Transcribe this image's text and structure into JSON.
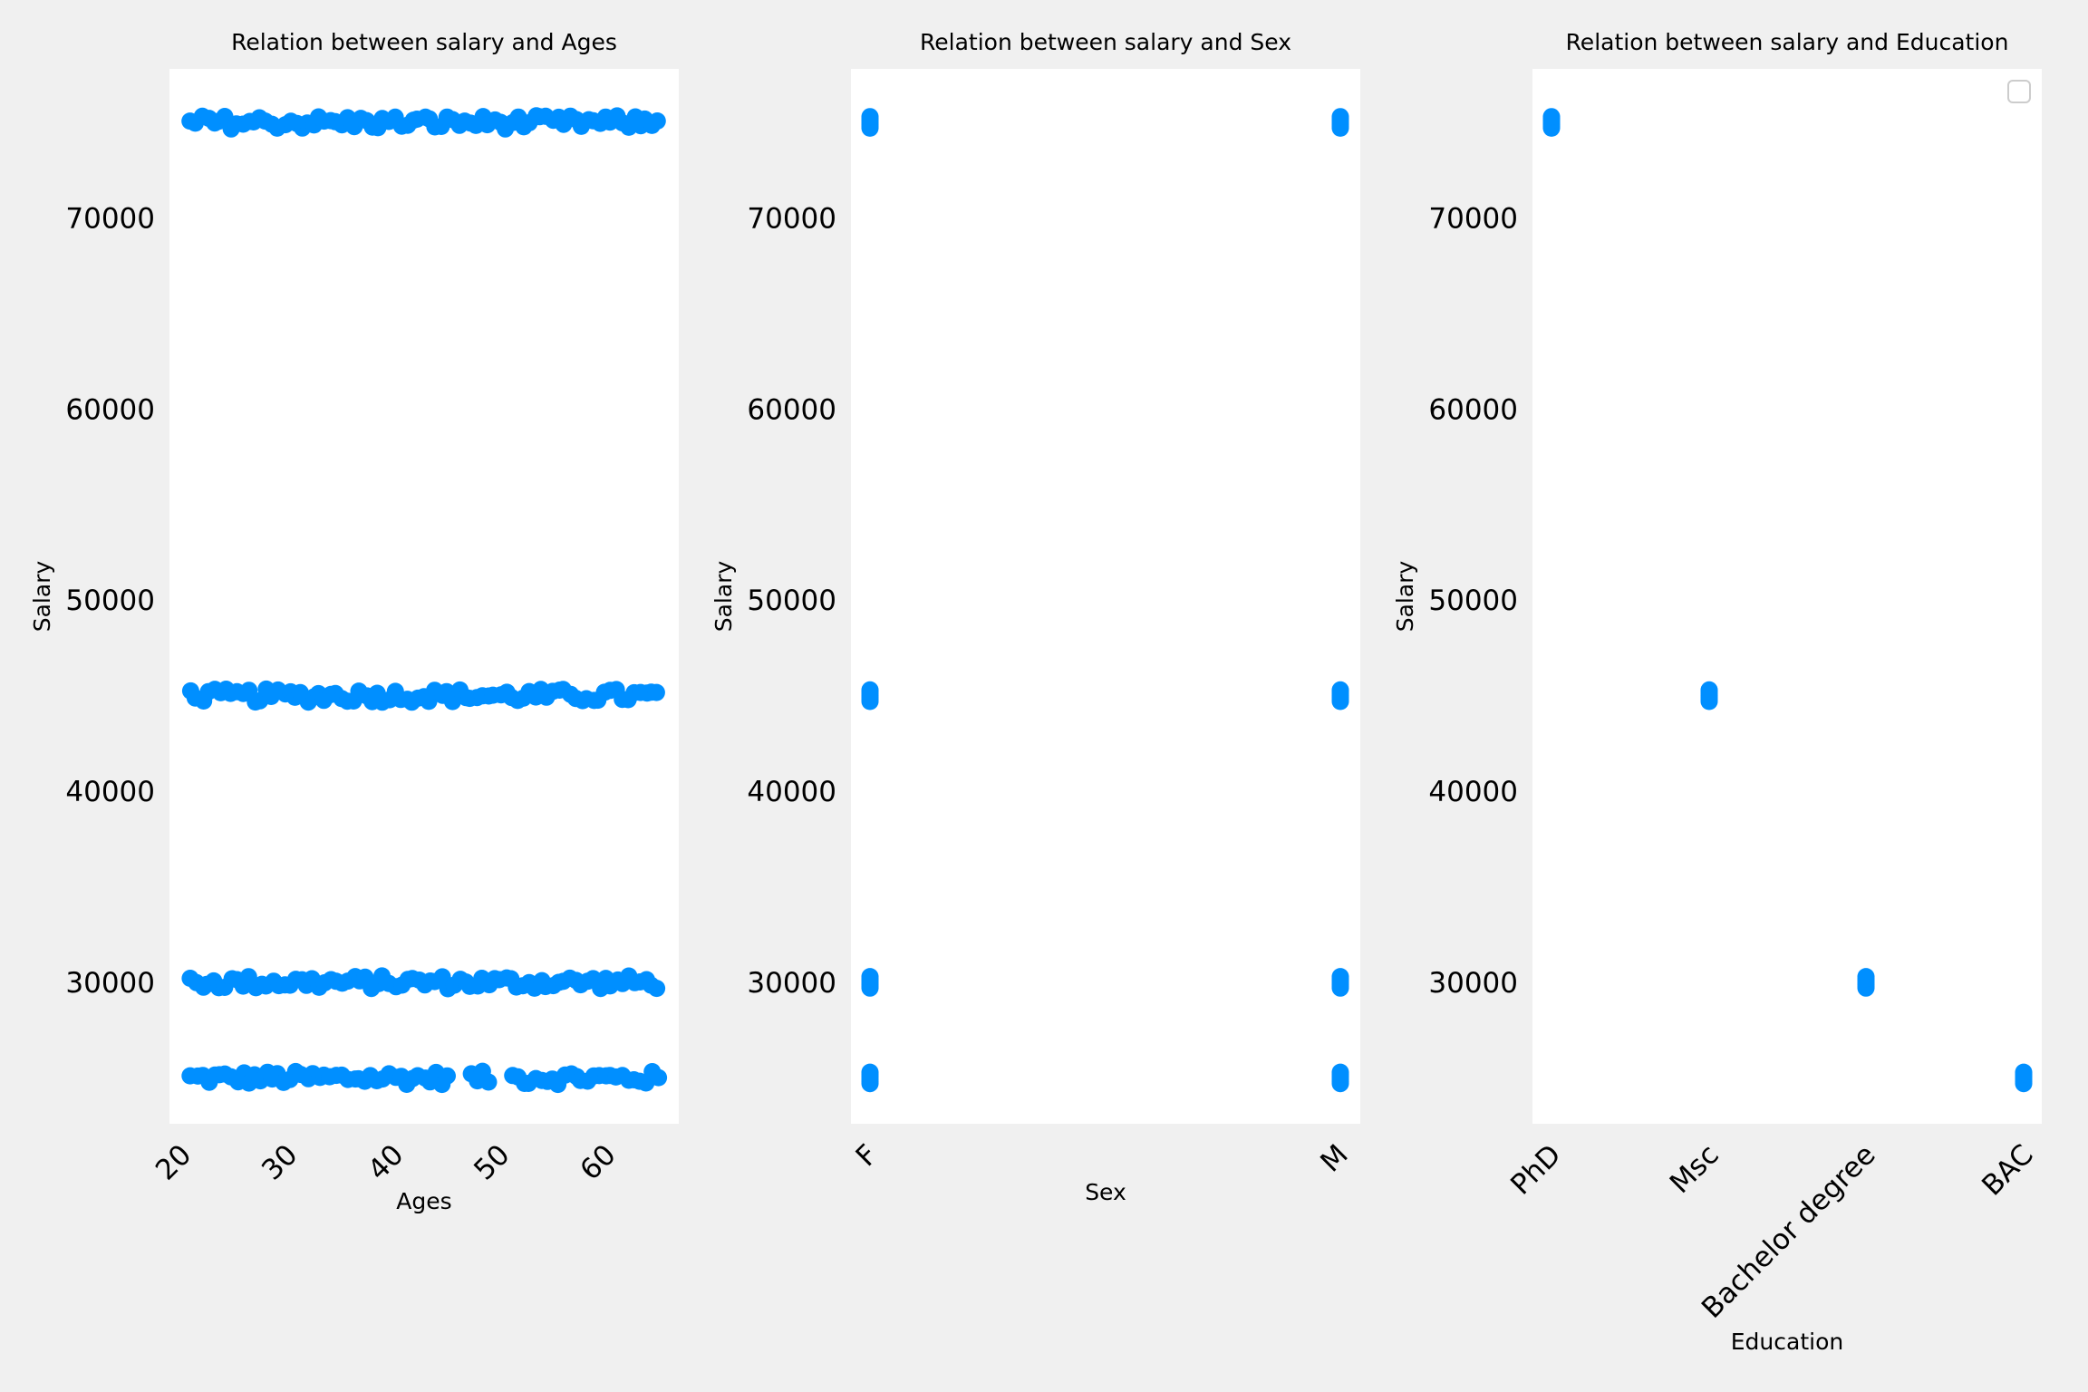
{
  "colors": {
    "figure_bg": "#f0f0f0",
    "axes_bg": "#ffffff",
    "marker": "#008fff"
  },
  "chart_data": [
    {
      "type": "scatter",
      "title": "Relation between salary and Ages",
      "xlabel": "Ages",
      "ylabel": "Salary",
      "x_ticks": [
        "20",
        "30",
        "40",
        "50",
        "60"
      ],
      "y_ticks": [
        "30000",
        "40000",
        "50000",
        "60000",
        "70000"
      ],
      "xlim": [
        19,
        67
      ],
      "ylim": [
        22600,
        77800
      ],
      "x_range": [
        21,
        65
      ],
      "salary_levels": [
        25000,
        30000,
        45000,
        75000
      ],
      "gaps": {
        "25000": [
          [
            45.6,
            47.2
          ],
          [
            49.2,
            51.2
          ]
        ]
      },
      "legend": "none"
    },
    {
      "type": "scatter",
      "title": "Relation between salary and Sex",
      "xlabel": "Sex",
      "ylabel": "Salary",
      "categories": [
        "F",
        "M"
      ],
      "y_ticks": [
        "30000",
        "40000",
        "50000",
        "60000",
        "70000"
      ],
      "ylim": [
        22600,
        77800
      ],
      "points": [
        {
          "x": "F",
          "y": [
            25000,
            30000,
            45000,
            75000
          ]
        },
        {
          "x": "M",
          "y": [
            25000,
            30000,
            45000,
            75000
          ]
        }
      ],
      "legend": "none"
    },
    {
      "type": "scatter",
      "title": "Relation between salary and Education",
      "xlabel": "Education",
      "ylabel": "Salary",
      "categories": [
        "PhD",
        "Msc",
        "Bachelor degree",
        "BAC"
      ],
      "y_ticks": [
        "30000",
        "40000",
        "50000",
        "60000",
        "70000"
      ],
      "ylim": [
        22600,
        77800
      ],
      "points": [
        {
          "x": "PhD",
          "y": 75000
        },
        {
          "x": "Msc",
          "y": 45000
        },
        {
          "x": "Bachelor degree",
          "y": 30000
        },
        {
          "x": "BAC",
          "y": 25000
        }
      ],
      "legend": "top-right (empty)"
    }
  ]
}
